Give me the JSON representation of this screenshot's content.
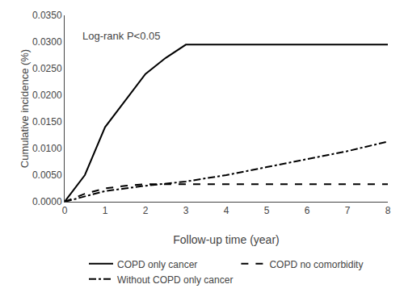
{
  "chart_data": {
    "type": "line",
    "xlabel": "Follow-up time (year)",
    "ylabel": "Cumulative incidence (%)",
    "annotation": "Log-rank P<0.05",
    "xlim": [
      0,
      8
    ],
    "ylim": [
      0,
      0.035
    ],
    "xticks": [
      0,
      1,
      2,
      3,
      4,
      5,
      6,
      7,
      8
    ],
    "yticks": [
      {
        "value": 0.0,
        "label": "0.0000"
      },
      {
        "value": 0.005,
        "label": "0.0050"
      },
      {
        "value": 0.01,
        "label": "0.0100"
      },
      {
        "value": 0.015,
        "label": "0.0150"
      },
      {
        "value": 0.02,
        "label": "0.0200"
      },
      {
        "value": 0.025,
        "label": "0.0250"
      },
      {
        "value": 0.03,
        "label": "0.0300"
      },
      {
        "value": 0.035,
        "label": "0.0350"
      }
    ],
    "grid": false,
    "legend": "bottom",
    "series": [
      {
        "name": "COPD only cancer",
        "color": "#000000",
        "line_style": "solid",
        "x": [
          0,
          0.5,
          1.0,
          1.5,
          2.0,
          2.5,
          3.0,
          8.0
        ],
        "values": [
          0.0,
          0.005,
          0.014,
          0.019,
          0.024,
          0.027,
          0.0295,
          0.0295
        ]
      },
      {
        "name": "COPD no comorbidity",
        "color": "#000000",
        "line_style": "dash",
        "x": [
          0,
          0.5,
          1.0,
          1.5,
          2.0,
          3.0,
          4.0,
          5.0,
          6.0,
          7.0,
          8.0
        ],
        "values": [
          0.0,
          0.0015,
          0.0025,
          0.003,
          0.0033,
          0.0033,
          0.0033,
          0.0033,
          0.0033,
          0.0033,
          0.0033
        ]
      },
      {
        "name": "Without COPD only cancer",
        "color": "#000000",
        "line_style": "dashdot",
        "x": [
          0,
          0.5,
          1.0,
          1.5,
          2.0,
          3.0,
          4.0,
          5.0,
          6.0,
          7.0,
          8.0
        ],
        "values": [
          0.0,
          0.001,
          0.002,
          0.0025,
          0.003,
          0.0038,
          0.005,
          0.0065,
          0.008,
          0.0095,
          0.0113
        ]
      }
    ]
  }
}
